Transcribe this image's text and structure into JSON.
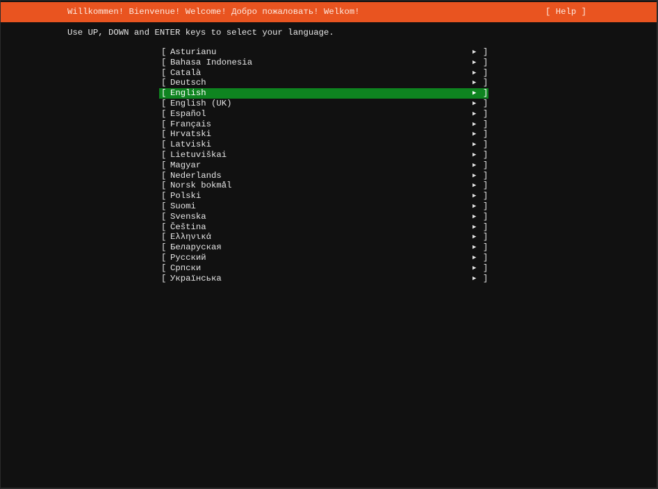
{
  "header": {
    "title": "Willkommen! Bienvenue! Welcome! Добро пожаловать! Welkom!",
    "help_label": "[ Help ]",
    "color": "#e95420"
  },
  "instructions": "Use UP, DOWN and ENTER keys to select your language.",
  "selection_color": "#0e8420",
  "selected_index": 4,
  "languages": [
    "Asturianu",
    "Bahasa Indonesia",
    "Català",
    "Deutsch",
    "English",
    "English (UK)",
    "Español",
    "Français",
    "Hrvatski",
    "Latviski",
    "Lietuviškai",
    "Magyar",
    "Nederlands",
    "Norsk bokmål",
    "Polski",
    "Suomi",
    "Svenska",
    "Čeština",
    "Ελληνικά",
    "Беларуская",
    "Русский",
    "Српски",
    "Українська"
  ],
  "glyphs": {
    "open": "[",
    "close": "]",
    "arrow": "▶"
  }
}
